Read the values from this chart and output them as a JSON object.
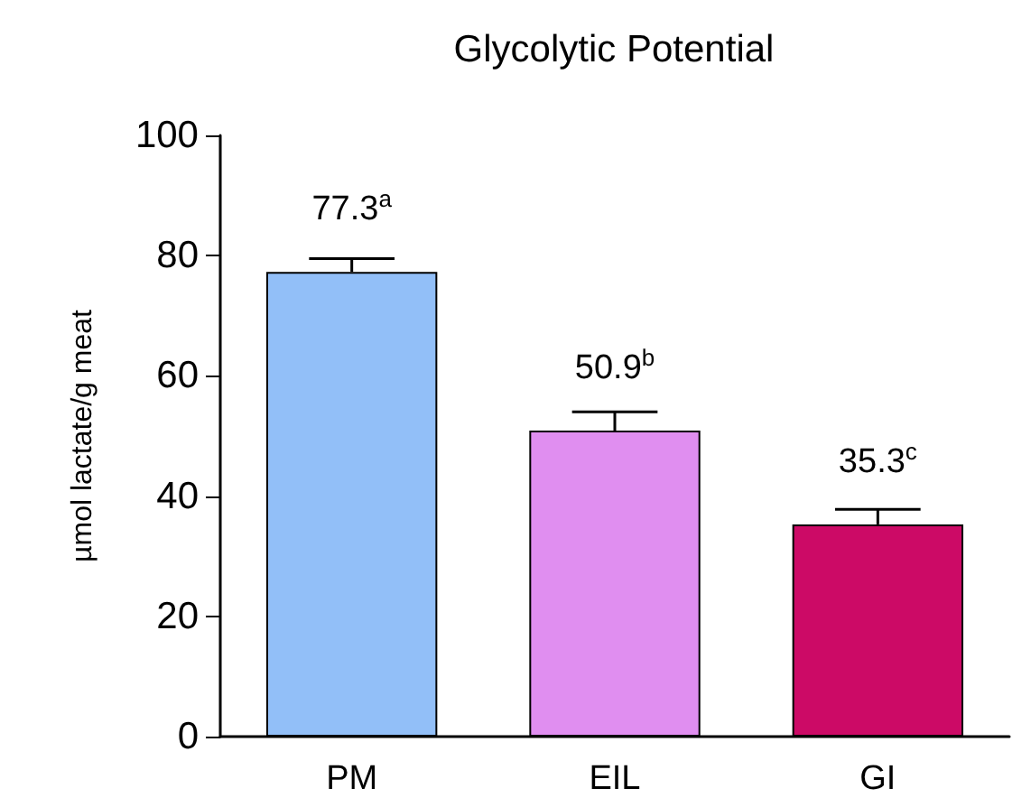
{
  "chart_data": {
    "type": "bar",
    "title": "Glycolytic Potential",
    "ylabel": "µmol lactate/g meat",
    "categories": [
      "PM",
      "EIL",
      "GI"
    ],
    "values": [
      77.3,
      50.9,
      35.3
    ],
    "colors": [
      "#92bff8",
      "#e08ef0",
      "#cc0a66"
    ],
    "errors": [
      [
        77.3,
        79.5
      ],
      [
        50.9,
        54
      ],
      [
        35.3,
        37.8
      ]
    ],
    "value_labels": [
      "77.3$^{a}$",
      "50.9$^{b}$",
      "35.3$^{c}$"
    ],
    "ylim": [
      0,
      100
    ],
    "yticks": [
      0,
      20,
      40,
      60,
      80,
      100
    ],
    "grid": false
  }
}
